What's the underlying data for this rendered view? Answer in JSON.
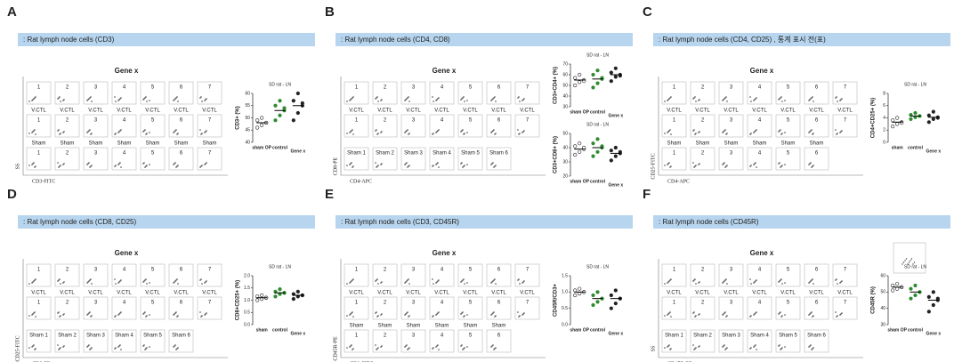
{
  "panels": [
    {
      "letter": "A",
      "header": ": Rat lymph node cells (CD3)",
      "grid": {
        "title": "Gene x",
        "ylabel": "SS",
        "xlabel": "CD3-FITC",
        "rows": [
          {
            "labels": [
              "1",
              "2",
              "3",
              "4",
              "5",
              "6",
              "7"
            ]
          },
          {
            "group": "V.CTL",
            "labels": [
              "1",
              "2",
              "3",
              "4",
              "5",
              "6",
              "7"
            ]
          },
          {
            "group": "Sham",
            "labels": [
              "1",
              "2",
              "3",
              "4",
              "5",
              "6",
              "7"
            ]
          }
        ]
      },
      "charts": [
        {
          "type": "dot",
          "title": "SD rat - LN",
          "ylabel": "CD3+ (%)",
          "ylim": [
            40,
            60
          ],
          "yticks": [
            40,
            45,
            50,
            55,
            60
          ],
          "categories": [
            "sham OP",
            "control",
            "Gene x"
          ],
          "groups": [
            {
              "color": "#222",
              "filled": false,
              "values": [
                46,
                47,
                48,
                49,
                50,
                48
              ],
              "mean": 48
            },
            {
              "color": "#2e8b2e",
              "filled": true,
              "values": [
                49,
                51,
                53,
                55,
                57,
                54
              ],
              "mean": 53
            },
            {
              "color": "#222",
              "filled": true,
              "values": [
                49,
                52,
                55,
                57,
                60,
                56
              ],
              "mean": 55
            }
          ]
        }
      ]
    },
    {
      "letter": "B",
      "header": ": Rat lymph node cells (CD4, CD8)",
      "grid": {
        "title": "Gene x",
        "ylabel": "CD8-PE",
        "xlabel": "CD4-APC",
        "rows": [
          {
            "labels": [
              "1",
              "2",
              "3",
              "4",
              "5",
              "6",
              "7"
            ]
          },
          {
            "group": "V.CTL",
            "labels": [
              "1",
              "2",
              "3",
              "4",
              "5",
              "6",
              "7"
            ]
          },
          {
            "labels": [
              "Sham 1",
              "Sham 2",
              "Sham 3",
              "Sham 4",
              "Sham 5",
              "Sham 6"
            ]
          }
        ]
      },
      "charts": [
        {
          "type": "dot",
          "title": "SD rat - LN",
          "ylabel": "CD3+CD4+ (%)",
          "ylim": [
            30,
            70
          ],
          "yticks": [
            30,
            40,
            50,
            60,
            70
          ],
          "categories": [
            "sham OP",
            "control",
            "Gene x"
          ],
          "groups": [
            {
              "color": "#222",
              "filled": false,
              "values": [
                50,
                53,
                55,
                57,
                60,
                54
              ],
              "mean": 55
            },
            {
              "color": "#2e8b2e",
              "filled": true,
              "values": [
                48,
                52,
                56,
                60,
                64,
                57
              ],
              "mean": 56
            },
            {
              "color": "#222",
              "filled": true,
              "values": [
                54,
                58,
                60,
                62,
                66,
                59
              ],
              "mean": 60
            }
          ]
        },
        {
          "type": "dot",
          "title": "SD rat - LN",
          "ylabel": "CD3+CD8+ (%)",
          "ylim": [
            20,
            50
          ],
          "yticks": [
            20,
            30,
            40,
            50
          ],
          "categories": [
            "sham OP",
            "control",
            "Gene x"
          ],
          "groups": [
            {
              "color": "#222",
              "filled": false,
              "values": [
                35,
                37,
                39,
                41,
                43,
                40
              ],
              "mean": 39
            },
            {
              "color": "#2e8b2e",
              "filled": true,
              "values": [
                34,
                37,
                40,
                43,
                46,
                41
              ],
              "mean": 40
            },
            {
              "color": "#222",
              "filled": true,
              "values": [
                31,
                34,
                36,
                38,
                40,
                37
              ],
              "mean": 36
            }
          ]
        }
      ]
    },
    {
      "letter": "C",
      "header": ": Rat lymph node cells (CD4, CD25) , 통계 표시 전(표)",
      "grid": {
        "title": "Gene x",
        "ylabel": "CD25-FITC",
        "xlabel": "CD4-APC",
        "rows": [
          {
            "labels": [
              "1",
              "2",
              "3",
              "4",
              "5",
              "6",
              "7"
            ]
          },
          {
            "group": "V.CTL",
            "labels": [
              "1",
              "2",
              "3",
              "4",
              "5",
              "6",
              "7"
            ]
          },
          {
            "group": "Sham",
            "labels": [
              "1",
              "2",
              "3",
              "4",
              "5",
              "6"
            ]
          }
        ]
      },
      "charts": [
        {
          "type": "dot",
          "title": "SD rat - LN",
          "ylabel": "CD4+CD25+ (%)",
          "ylim": [
            0,
            8
          ],
          "yticks": [
            0,
            2,
            4,
            6,
            8
          ],
          "categories": [
            "sham",
            "control",
            "Gene x"
          ],
          "groups": [
            {
              "color": "#222",
              "filled": false,
              "values": [
                2.6,
                3,
                3.3,
                3.6,
                4,
                3.2
              ],
              "mean": 3.3
            },
            {
              "color": "#2e8b2e",
              "filled": true,
              "values": [
                3.8,
                4.1,
                4.3,
                4.5,
                4.8,
                4.3
              ],
              "mean": 4.3
            },
            {
              "color": "#222",
              "filled": true,
              "values": [
                3.3,
                3.8,
                4.1,
                4.4,
                5,
                4
              ],
              "mean": 4.1
            }
          ]
        }
      ]
    },
    {
      "letter": "D",
      "header": ": Rat lymph node cells (CD8, CD25)",
      "grid": {
        "title": "Gene x",
        "ylabel": "CD25-FITC",
        "xlabel": "CD8-PE",
        "rows": [
          {
            "labels": [
              "1",
              "2",
              "3",
              "4",
              "5",
              "6",
              "7"
            ]
          },
          {
            "group": "V.CTL",
            "labels": [
              "1",
              "2",
              "3",
              "4",
              "5",
              "6",
              "7"
            ]
          },
          {
            "labels": [
              "Sham 1",
              "Sham 2",
              "Sham 3",
              "Sham 4",
              "Sham 5",
              "Sham 6"
            ]
          }
        ]
      },
      "charts": [
        {
          "type": "dot",
          "title": "SD rat - LN",
          "ylabel": "CD8+CD25+ (%)",
          "ylim": [
            0,
            2
          ],
          "yticks": [
            {
              "value": 0,
              "label": "0.0"
            },
            0.5,
            {
              "value": 1,
              "label": "1.0"
            },
            1.5,
            {
              "value": 2,
              "label": "2.0"
            }
          ],
          "categories": [
            "sham",
            "control",
            "Gene x"
          ],
          "groups": [
            {
              "color": "#222",
              "filled": false,
              "values": [
                1,
                1.05,
                1.1,
                1.15,
                1.2,
                1.1
              ],
              "mean": 1.1
            },
            {
              "color": "#2e8b2e",
              "filled": true,
              "values": [
                1.15,
                1.25,
                1.3,
                1.35,
                1.45,
                1.3
              ],
              "mean": 1.3
            },
            {
              "color": "#222",
              "filled": true,
              "values": [
                1.05,
                1.15,
                1.2,
                1.25,
                1.35,
                1.2
              ],
              "mean": 1.2
            }
          ]
        }
      ]
    },
    {
      "letter": "E",
      "header": ": Rat lymph node cells (CD3, CD45R)",
      "grid": {
        "title": "Gene x",
        "ylabel": "CD45R-PE",
        "xlabel": "CD3-FITC",
        "rows": [
          {
            "labels": [
              "1",
              "2",
              "3",
              "4",
              "5",
              "6",
              "7"
            ]
          },
          {
            "group": "V.CTL",
            "labels": [
              "1",
              "2",
              "3",
              "4",
              "5",
              "6",
              "7"
            ]
          },
          {
            "group": "Sham",
            "labels": [
              "1",
              "2",
              "3",
              "4",
              "5",
              "6"
            ]
          }
        ]
      },
      "charts": [
        {
          "type": "dot",
          "title": "SD rat - LN",
          "ylabel": "CD45R/CD3+",
          "ylim": [
            0,
            1.5
          ],
          "yticks": [
            {
              "value": 0,
              "label": "0.0"
            },
            0.5,
            {
              "value": 1,
              "label": "1.0"
            },
            1.5
          ],
          "categories": [
            "sham OP",
            "control",
            "Gene x"
          ],
          "groups": [
            {
              "color": "#222",
              "filled": false,
              "values": [
                0.9,
                0.95,
                1,
                1.05,
                1.1,
                1
              ],
              "mean": 1
            },
            {
              "color": "#2e8b2e",
              "filled": true,
              "values": [
                0.6,
                0.7,
                0.8,
                0.9,
                1,
                0.8
              ],
              "mean": 0.8
            },
            {
              "color": "#222",
              "filled": true,
              "values": [
                0.5,
                0.65,
                0.8,
                0.9,
                1.05,
                0.8
              ],
              "mean": 0.8
            }
          ]
        }
      ]
    },
    {
      "letter": "F",
      "header": ": Rat lymph node cells (CD45R)",
      "grid": {
        "title": "Gene x",
        "ylabel": "SS",
        "xlabel": "CD45R-PE",
        "rows": [
          {
            "labels": [
              "1",
              "2",
              "3",
              "4",
              "5",
              "6",
              "7"
            ]
          },
          {
            "group": "V.CTL",
            "labels": [
              "1",
              "2",
              "3",
              "4",
              "5",
              "6",
              "7"
            ]
          },
          {
            "labels": [
              "Sham 1",
              "Sham 2",
              "Sham 3",
              "Sham 4",
              "Sham 5",
              "Sham 6"
            ]
          }
        ]
      },
      "charts": [
        {
          "type": "dot",
          "title": "SD rat - LN",
          "ylabel": "CD45R (%)",
          "ylim": [
            30,
            60
          ],
          "yticks": [
            30,
            40,
            50,
            60
          ],
          "categories": [
            "sham OP",
            "control",
            "Gene x"
          ],
          "groups": [
            {
              "color": "#222",
              "filled": false,
              "values": [
                51,
                52,
                53,
                54,
                55,
                53
              ],
              "mean": 53
            },
            {
              "color": "#2e8b2e",
              "filled": true,
              "values": [
                46,
                48,
                50,
                52,
                54,
                50
              ],
              "mean": 50
            },
            {
              "color": "#222",
              "filled": true,
              "values": [
                38,
                42,
                45,
                47,
                50,
                46
              ],
              "mean": 45
            }
          ]
        }
      ]
    }
  ]
}
